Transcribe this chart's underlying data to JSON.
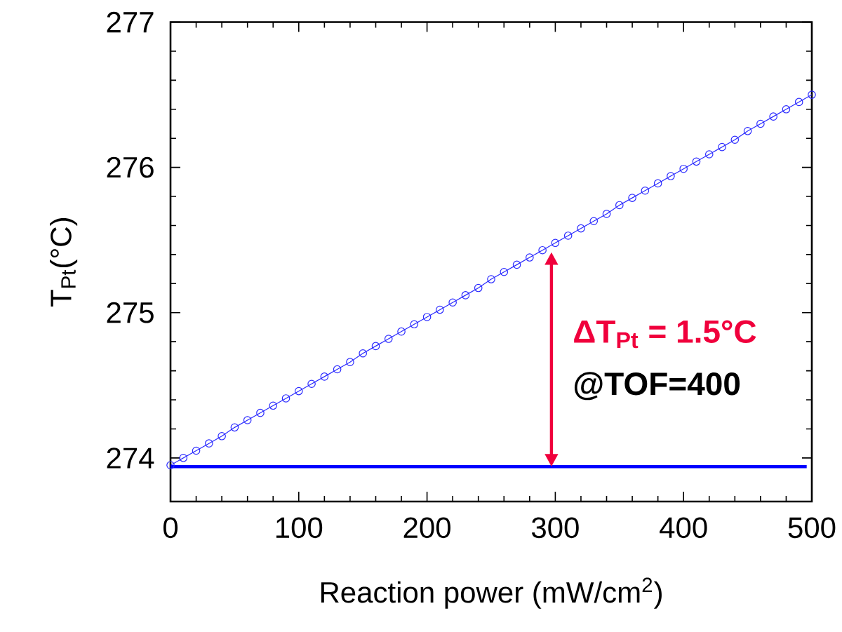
{
  "chart_data": {
    "type": "line",
    "xlabel": "Reaction power (mW/cm$^{2}$)",
    "ylabel": "T$_{Pt}$(°C)",
    "series": [
      {
        "color": "#2a2aff",
        "marker": "circle",
        "x": [
          0,
          10,
          20,
          30,
          40,
          50,
          60,
          70,
          80,
          90,
          100,
          110,
          120,
          130,
          140,
          150,
          160,
          170,
          180,
          190,
          200,
          210,
          220,
          230,
          240,
          250,
          260,
          270,
          280,
          290,
          300,
          310,
          320,
          330,
          340,
          350,
          360,
          370,
          380,
          390,
          400,
          410,
          420,
          430,
          440,
          450,
          460,
          470,
          480,
          490,
          500
        ],
        "values": [
          273.95,
          274.0,
          274.05,
          274.1,
          274.15,
          274.21,
          274.26,
          274.31,
          274.36,
          274.41,
          274.46,
          274.51,
          274.56,
          274.61,
          274.66,
          274.72,
          274.77,
          274.82,
          274.87,
          274.92,
          274.97,
          275.02,
          275.07,
          275.12,
          275.17,
          275.23,
          275.28,
          275.33,
          275.38,
          275.43,
          275.48,
          275.53,
          275.58,
          275.63,
          275.68,
          275.74,
          275.79,
          275.84,
          275.89,
          275.94,
          275.99,
          276.04,
          276.09,
          276.14,
          276.19,
          276.25,
          276.3,
          276.35,
          276.4,
          276.45,
          276.5
        ]
      },
      {
        "color": "#0000ff",
        "marker": "none",
        "x": [
          0,
          496
        ],
        "values": [
          273.94,
          273.94
        ]
      }
    ],
    "annotations": [
      "ΔT$_{Pt}$ = 1.5°C",
      "@TOF=400"
    ],
    "xlim": [
      0,
      500
    ],
    "ylim": [
      273.7,
      277
    ],
    "xticks": [
      0,
      100,
      200,
      300,
      400,
      500
    ],
    "yticks": [
      274,
      275,
      276,
      277
    ],
    "grid": false
  }
}
